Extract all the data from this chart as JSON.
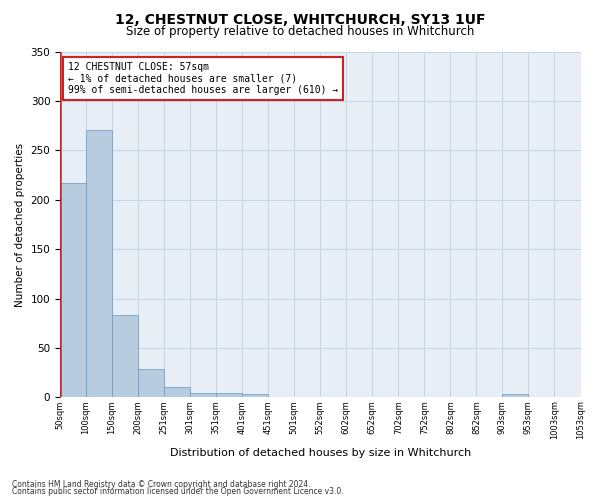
{
  "title1": "12, CHESTNUT CLOSE, WHITCHURCH, SY13 1UF",
  "title2": "Size of property relative to detached houses in Whitchurch",
  "xlabel": "Distribution of detached houses by size in Whitchurch",
  "ylabel": "Number of detached properties",
  "annotation_line1": "12 CHESTNUT CLOSE: 57sqm",
  "annotation_line2": "← 1% of detached houses are smaller (7)",
  "annotation_line3": "99% of semi-detached houses are larger (610) →",
  "footer1": "Contains HM Land Registry data © Crown copyright and database right 2024.",
  "footer2": "Contains public sector information licensed under the Open Government Licence v3.0.",
  "bar_values": [
    217,
    271,
    83,
    29,
    11,
    4,
    4,
    3,
    0,
    0,
    0,
    0,
    0,
    0,
    0,
    0,
    0,
    3,
    0,
    0
  ],
  "tick_labels": [
    "50sqm",
    "100sqm",
    "150sqm",
    "200sqm",
    "251sqm",
    "301sqm",
    "351sqm",
    "401sqm",
    "451sqm",
    "501sqm",
    "552sqm",
    "602sqm",
    "652sqm",
    "702sqm",
    "752sqm",
    "802sqm",
    "852sqm",
    "903sqm",
    "953sqm",
    "1003sqm",
    "1053sqm"
  ],
  "bar_color": "#b8ccdf",
  "bar_edge_color": "#6699cc",
  "highlight_color": "#cc2222",
  "annotation_box_color": "#cc2222",
  "grid_color": "#c5d5e5",
  "background_color": "#e8eef5",
  "ylim": [
    0,
    350
  ],
  "yticks": [
    0,
    50,
    100,
    150,
    200,
    250,
    300,
    350
  ]
}
